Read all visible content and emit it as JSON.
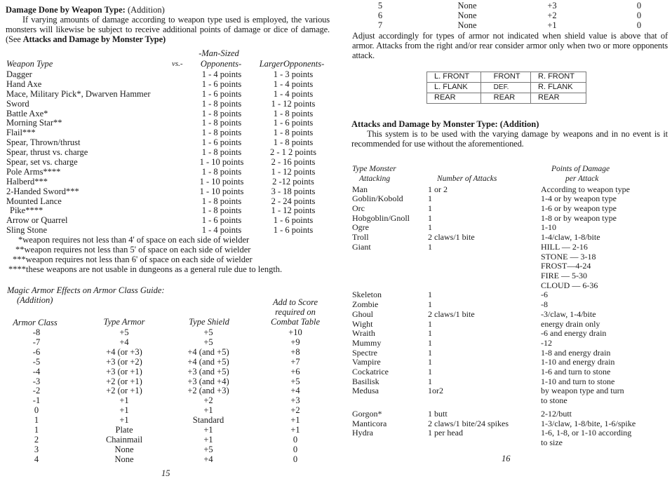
{
  "left_page": {
    "weapon_section": {
      "title": "Damage Done by Weapon Type:",
      "title_suffix": "(Addition)",
      "intro_1": "If varying amounts of damage according to weapon type used is employed, the various monsters will likewise be subject to receive additional points of damage or dice of damage. (See ",
      "intro_bold": "Attacks and Damage by Monster Type)",
      "headers": {
        "weapon": "Weapon  Type",
        "vs": "vs.-",
        "man_sized_1": "-Man-Sized",
        "man_sized_2": "Opponents-",
        "larger": "LargerOpponents-"
      },
      "rows": [
        [
          "Dagger",
          "1 - 4 points",
          "1 - 3 points"
        ],
        [
          "Hand Axe",
          "1 - 6 points",
          "1 - 4 points"
        ],
        [
          "Mace, Military Pick*, Dwarven Hammer",
          "1 - 6 points",
          "1 - 4 points"
        ],
        [
          "Sword",
          "1 - 8 points",
          "1 - 12 points"
        ],
        [
          "Battle Axe*",
          "1 - 8 points",
          "1 - 8 points"
        ],
        [
          "Morning Star**",
          "1 - 8 points",
          "1 - 6 points"
        ],
        [
          "Flail***",
          "1 - 8 points",
          "1 - 8 points"
        ],
        [
          "Spear, Thrown/thrust",
          "1 - 6 points",
          "1 - 8 points"
        ],
        [
          "Spear, thrust vs. charge",
          "1 - 8 points",
          "2 - 1 2 points"
        ],
        [
          "Spear, set vs. charge",
          "1 - 10 points",
          "2 - 16 points"
        ],
        [
          "Pole Arms****",
          "1 - 8 points",
          "1 - 12 points"
        ],
        [
          "Halberd***",
          "1 - 10 points",
          "2 -12 points"
        ],
        [
          "2-Handed Sword***",
          "1 - 10 points",
          "3 - 18 points"
        ],
        [
          "Mounted Lance",
          "1 - 8 points",
          "2 - 24 points"
        ],
        [
          "Pike****",
          "1 - 8 points",
          "1 - 12 points"
        ],
        [
          "Arrow or Quarrel",
          "1 - 6 points",
          "1 - 6 points"
        ],
        [
          "Sling Stone",
          "1 - 4 points",
          "1 - 6 points"
        ]
      ],
      "footnotes": [
        "*weapon requires not less than 4' of space on each side of wielder",
        "**weapon requires not less than 5' of space on each side of wielder",
        "***weapon requires not less than 6' of space on each side of wielder",
        "****these weapons are not usable in dungeons as a general rule due to length."
      ]
    },
    "armor_section": {
      "title": "Magic Armor Effects on Armor Class Guide:",
      "title_suffix": "(Addition)",
      "headers": {
        "armor_class": "Armor Class",
        "type_armor": "Type  Armor",
        "type_shield": "Type  Shield",
        "add_1": "Add to Score",
        "add_2": "required on",
        "add_3": "Combat  Table"
      },
      "rows": [
        [
          "-8",
          "+5",
          "+5",
          "+10"
        ],
        [
          "-7",
          "+4",
          "+5",
          "+9"
        ],
        [
          "-6",
          "+4 (or +3)",
          "+4 (and +5)",
          "+8"
        ],
        [
          "-5",
          "+3 (or +2)",
          "+4 (and +5)",
          "+7"
        ],
        [
          "-4",
          "+3 (or +1)",
          "+3 (and +5)",
          "+6"
        ],
        [
          "-3",
          "+2 (or +1)",
          "+3 (and +4)",
          "+5"
        ],
        [
          "-2",
          "+2 (or +1)",
          "+2 (and +3)",
          "+4"
        ],
        [
          "-1",
          "+1",
          "+2",
          "+3"
        ],
        [
          "0",
          "+1",
          "+1",
          "+2"
        ],
        [
          "1",
          "+1",
          "Standard",
          "+1"
        ],
        [
          "1",
          "Plate",
          "+1",
          "+1"
        ],
        [
          "2",
          "Chainmail",
          "+1",
          "0"
        ],
        [
          "3",
          "None",
          "+5",
          "0"
        ],
        [
          "4",
          "None",
          "+4",
          "0"
        ]
      ]
    },
    "page_number": "15"
  },
  "right_page": {
    "armor_rows_continued": [
      [
        "5",
        "None",
        "+3",
        "0"
      ],
      [
        "6",
        "None",
        "+2",
        "0"
      ],
      [
        "7",
        "None",
        "+1",
        "0"
      ]
    ],
    "adjust_note": "Adjust accordingly  for types of armor not indicated when shield value is above that of armor. Attacks from the right and/or rear consider armor only when two or more opponents attack.",
    "position_grid": [
      [
        "L. FRONT",
        "FRONT",
        "R. FRONT"
      ],
      [
        "L. FLANK",
        "DEF.",
        "R. FLANK"
      ],
      [
        "REAR",
        "REAR",
        "REAR"
      ]
    ],
    "monster_section": {
      "title": "Attacks and Damage by Monster Type: (Addition)",
      "intro": "This system is to be used with the varying damage by weapons and in no event is it recommended for use without the aforementioned.",
      "headers": {
        "type_1": "Type  Monster",
        "type_2": "Attacking",
        "attacks": "Number  of Attacks",
        "damage_1": "Points  of Damage",
        "damage_2": "per Attack"
      },
      "rows": [
        [
          "Man",
          "1 or 2",
          "According to weapon type"
        ],
        [
          "Goblin/Kobold",
          "1",
          "1-4 or by weapon type"
        ],
        [
          "Orc",
          "1",
          "1-6 or by weapon type"
        ],
        [
          "Hobgoblin/Gnoll",
          "1",
          "1-8 or by weapon type"
        ],
        [
          "Ogre",
          "1",
          "1-10"
        ],
        [
          "Troll",
          "2 claws/1 bite",
          "1-4/claw, 1-8/bite"
        ],
        [
          "Giant",
          "1",
          "HILL — 2-16\nSTONE — 3-18\nFROST—4-24\nFIRE — 5-30\nCLOUD — 6-36"
        ],
        [
          "Skeleton",
          "1",
          "  -6"
        ],
        [
          "Zombie",
          "1",
          "  -8"
        ],
        [
          "Ghoul",
          "2 claws/1 bite",
          "  -3/claw, 1-4/bite"
        ],
        [
          "Wight",
          "1",
          "energy drain only"
        ],
        [
          "Wraith",
          "1",
          "  -6 and energy drain"
        ],
        [
          "Mummy",
          "1",
          "  -12"
        ],
        [
          "Spectre",
          "1",
          "1-8 and energy drain"
        ],
        [
          "Vampire",
          "1",
          "1-10 and energy drain"
        ],
        [
          "Cockatrice",
          "1",
          "1-6 and turn to stone"
        ],
        [
          "Basilisk",
          "1",
          "1-10 and turn to stone"
        ],
        [
          "Medusa",
          "1or2",
          "by weapon type and turn\nto stone"
        ],
        [
          "Gorgon*",
          "1 butt",
          "2-12/butt"
        ],
        [
          "Manticora",
          "2 claws/1 bite/24 spikes",
          "1-3/claw, 1-8/bite, 1-6/spike"
        ],
        [
          "Hydra",
          "1 per head",
          "1-6, 1-8, or 1-10 according\nto size"
        ]
      ]
    },
    "page_number": "16"
  }
}
